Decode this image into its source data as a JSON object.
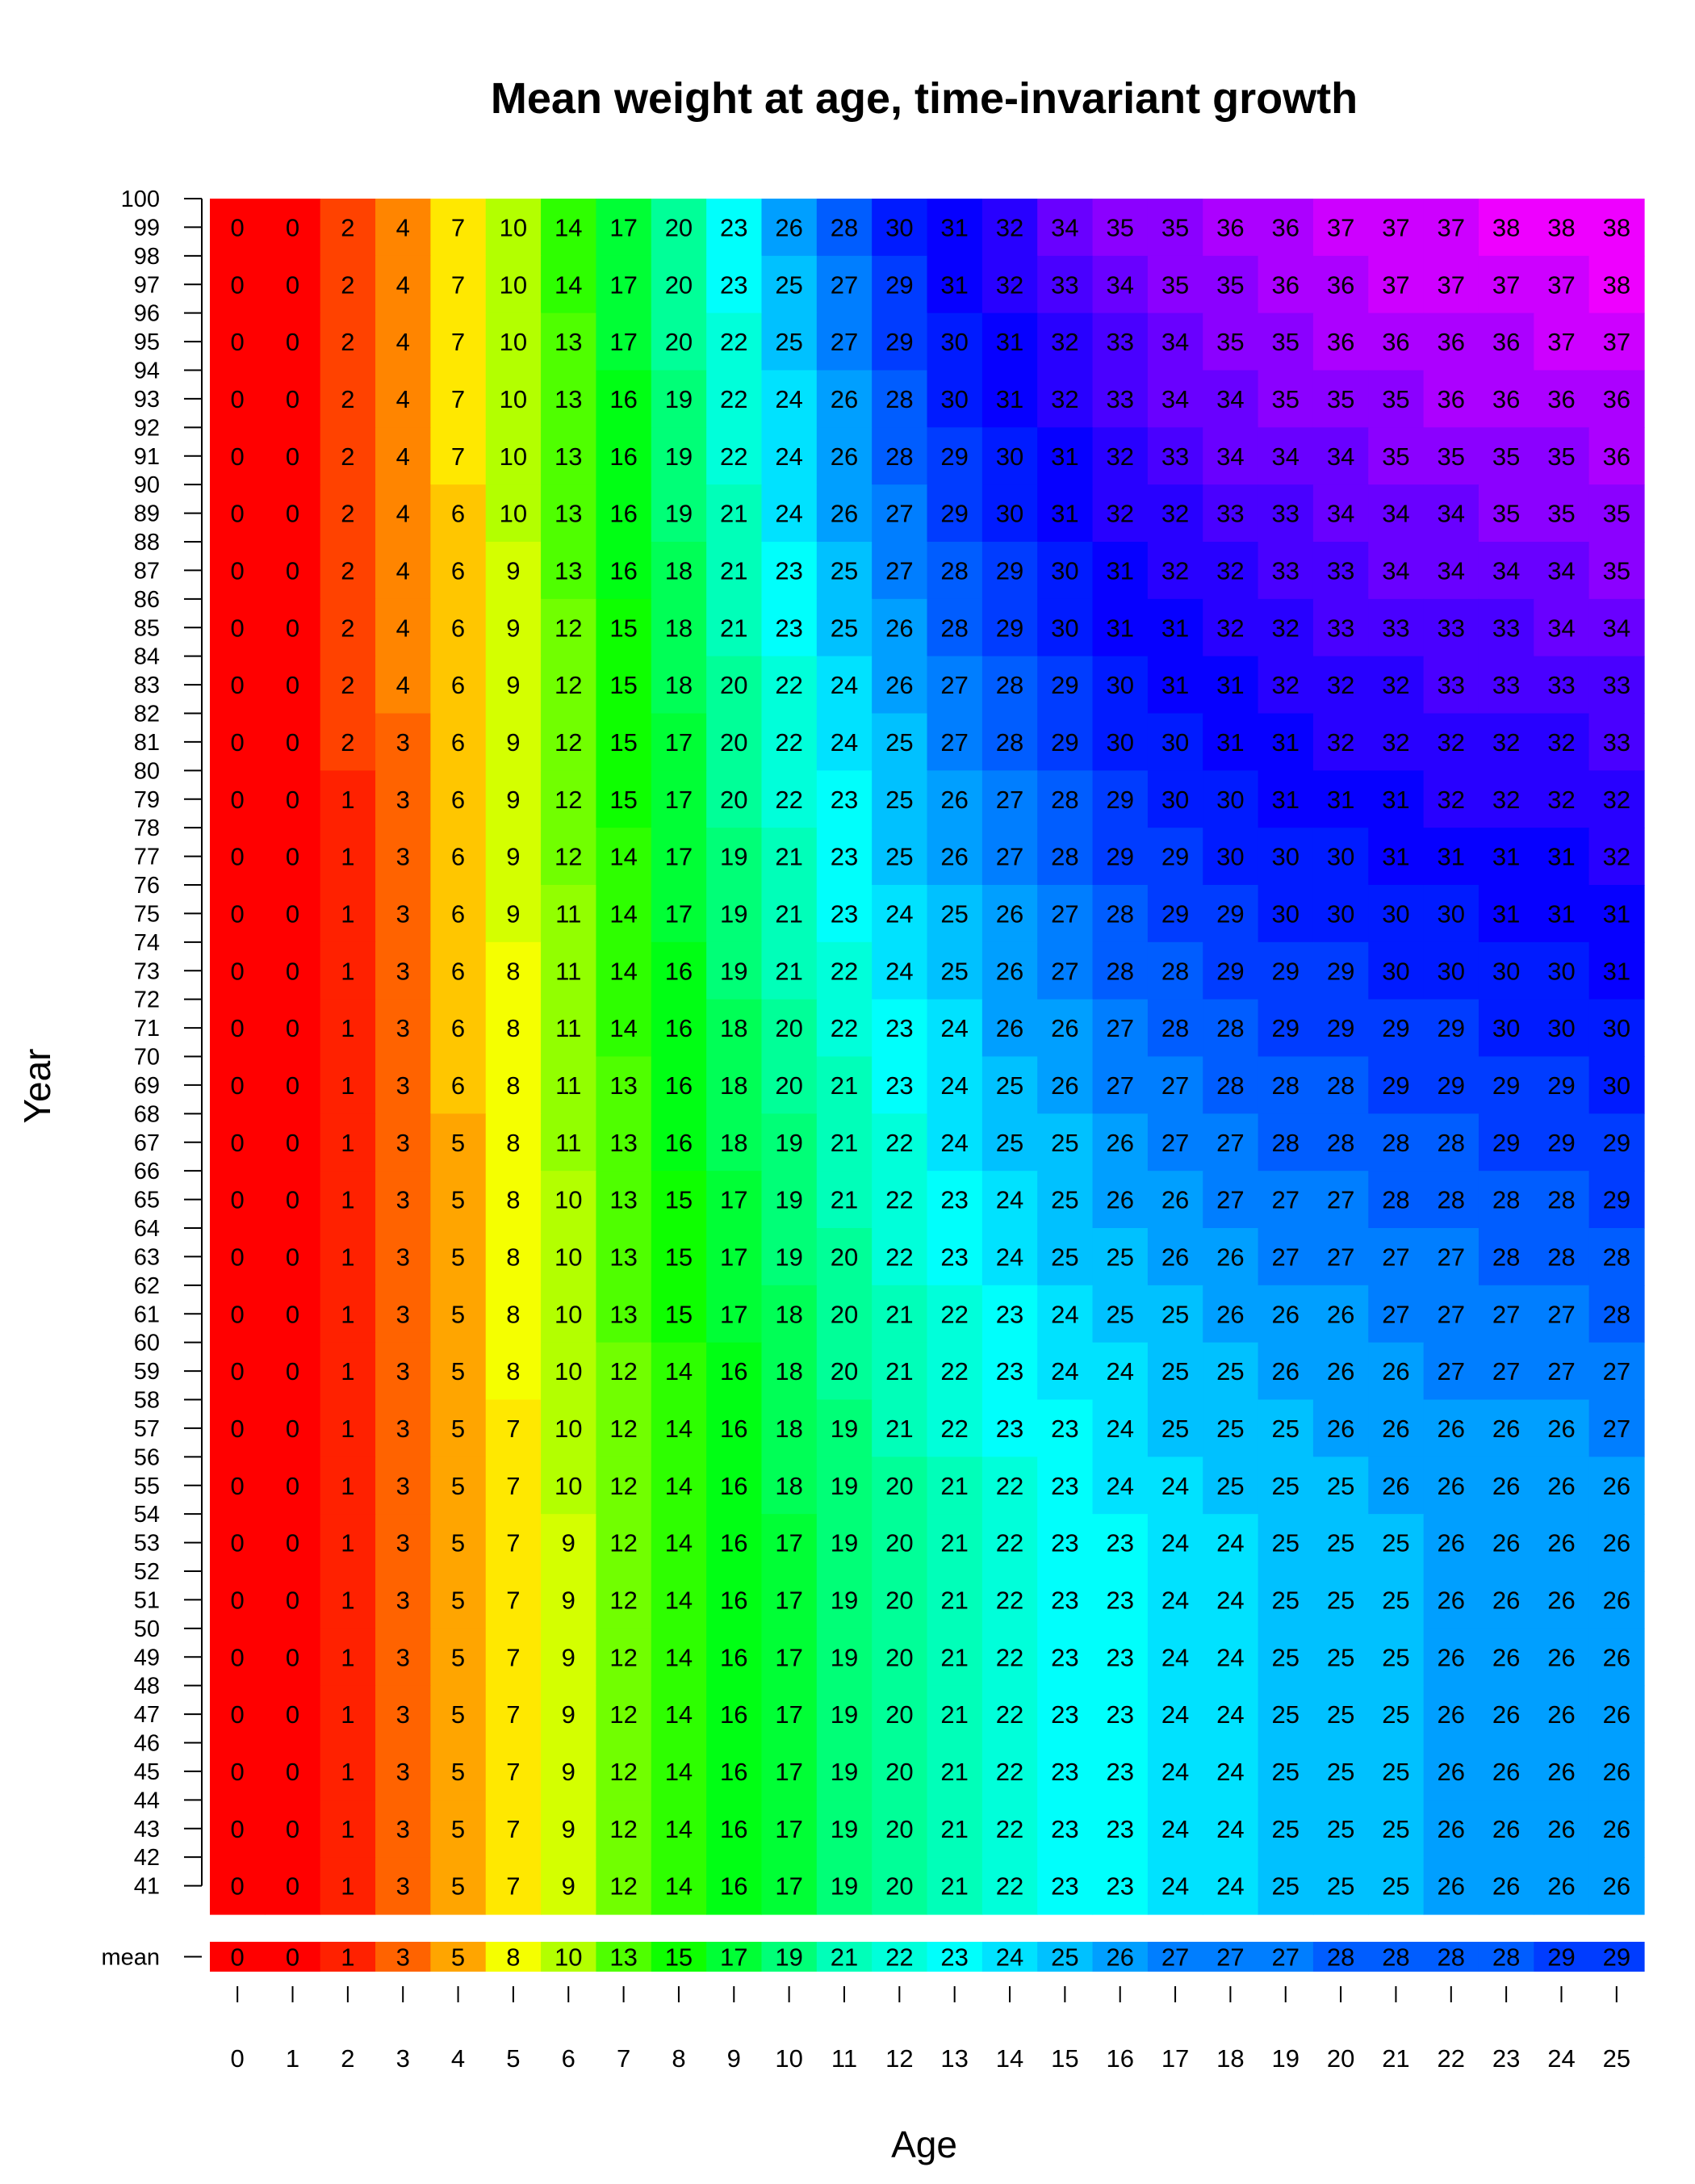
{
  "chart_data": {
    "type": "heatmap",
    "title": "Mean weight at age, time-invariant growth",
    "xlabel": "Age",
    "ylabel": "Year",
    "x_ticks": [
      "0",
      "1",
      "2",
      "3",
      "4",
      "5",
      "6",
      "7",
      "8",
      "9",
      "10",
      "11",
      "12",
      "13",
      "14",
      "15",
      "16",
      "17",
      "18",
      "19",
      "20",
      "21",
      "22",
      "23",
      "24",
      "25"
    ],
    "year_ticks": [
      "41",
      "42",
      "43",
      "44",
      "45",
      "46",
      "47",
      "48",
      "49",
      "50",
      "51",
      "52",
      "53",
      "54",
      "55",
      "56",
      "57",
      "58",
      "59",
      "60",
      "61",
      "62",
      "63",
      "64",
      "65",
      "66",
      "67",
      "68",
      "69",
      "70",
      "71",
      "72",
      "73",
      "74",
      "75",
      "76",
      "77",
      "78",
      "79",
      "80",
      "81",
      "82",
      "83",
      "84",
      "85",
      "86",
      "87",
      "88",
      "89",
      "90",
      "91",
      "92",
      "93",
      "94",
      "95",
      "96",
      "97",
      "98",
      "99",
      "100"
    ],
    "mean_row_label": "mean",
    "color_scale": "rainbow red-yellow-green-cyan-blue-magenta by value (0 to 38)",
    "rows": [
      {
        "year": "99",
        "values": [
          0,
          0,
          2,
          4,
          7,
          10,
          14,
          17,
          20,
          23,
          26,
          28,
          30,
          31,
          32,
          34,
          35,
          35,
          36,
          36,
          37,
          37,
          37,
          38,
          38,
          38
        ]
      },
      {
        "year": "97",
        "values": [
          0,
          0,
          2,
          4,
          7,
          10,
          14,
          17,
          20,
          23,
          25,
          27,
          29,
          31,
          32,
          33,
          34,
          35,
          35,
          36,
          36,
          37,
          37,
          37,
          37,
          38
        ]
      },
      {
        "year": "95",
        "values": [
          0,
          0,
          2,
          4,
          7,
          10,
          13,
          17,
          20,
          22,
          25,
          27,
          29,
          30,
          31,
          32,
          33,
          34,
          35,
          35,
          36,
          36,
          36,
          36,
          37,
          37
        ]
      },
      {
        "year": "93",
        "values": [
          0,
          0,
          2,
          4,
          7,
          10,
          13,
          16,
          19,
          22,
          24,
          26,
          28,
          30,
          31,
          32,
          33,
          34,
          34,
          35,
          35,
          35,
          36,
          36,
          36,
          36
        ]
      },
      {
        "year": "91",
        "values": [
          0,
          0,
          2,
          4,
          7,
          10,
          13,
          16,
          19,
          22,
          24,
          26,
          28,
          29,
          30,
          31,
          32,
          33,
          34,
          34,
          34,
          35,
          35,
          35,
          35,
          36
        ]
      },
      {
        "year": "89",
        "values": [
          0,
          0,
          2,
          4,
          6,
          10,
          13,
          16,
          19,
          21,
          24,
          26,
          27,
          29,
          30,
          31,
          32,
          32,
          33,
          33,
          34,
          34,
          34,
          35,
          35,
          35
        ]
      },
      {
        "year": "87",
        "values": [
          0,
          0,
          2,
          4,
          6,
          9,
          13,
          16,
          18,
          21,
          23,
          25,
          27,
          28,
          29,
          30,
          31,
          32,
          32,
          33,
          33,
          34,
          34,
          34,
          34,
          35
        ]
      },
      {
        "year": "85",
        "values": [
          0,
          0,
          2,
          4,
          6,
          9,
          12,
          15,
          18,
          21,
          23,
          25,
          26,
          28,
          29,
          30,
          31,
          31,
          32,
          32,
          33,
          33,
          33,
          33,
          34,
          34
        ]
      },
      {
        "year": "83",
        "values": [
          0,
          0,
          2,
          4,
          6,
          9,
          12,
          15,
          18,
          20,
          22,
          24,
          26,
          27,
          28,
          29,
          30,
          31,
          31,
          32,
          32,
          32,
          33,
          33,
          33,
          33
        ]
      },
      {
        "year": "81",
        "values": [
          0,
          0,
          2,
          3,
          6,
          9,
          12,
          15,
          17,
          20,
          22,
          24,
          25,
          27,
          28,
          29,
          30,
          30,
          31,
          31,
          32,
          32,
          32,
          32,
          32,
          33
        ]
      },
      {
        "year": "79",
        "values": [
          0,
          0,
          1,
          3,
          6,
          9,
          12,
          15,
          17,
          20,
          22,
          23,
          25,
          26,
          27,
          28,
          29,
          30,
          30,
          31,
          31,
          31,
          32,
          32,
          32,
          32
        ]
      },
      {
        "year": "77",
        "values": [
          0,
          0,
          1,
          3,
          6,
          9,
          12,
          14,
          17,
          19,
          21,
          23,
          25,
          26,
          27,
          28,
          29,
          29,
          30,
          30,
          30,
          31,
          31,
          31,
          31,
          32
        ]
      },
      {
        "year": "75",
        "values": [
          0,
          0,
          1,
          3,
          6,
          9,
          11,
          14,
          17,
          19,
          21,
          23,
          24,
          25,
          26,
          27,
          28,
          29,
          29,
          30,
          30,
          30,
          30,
          31,
          31,
          31
        ]
      },
      {
        "year": "73",
        "values": [
          0,
          0,
          1,
          3,
          6,
          8,
          11,
          14,
          16,
          19,
          21,
          22,
          24,
          25,
          26,
          27,
          28,
          28,
          29,
          29,
          29,
          30,
          30,
          30,
          30,
          31
        ]
      },
      {
        "year": "71",
        "values": [
          0,
          0,
          1,
          3,
          6,
          8,
          11,
          14,
          16,
          18,
          20,
          22,
          23,
          24,
          26,
          26,
          27,
          28,
          28,
          29,
          29,
          29,
          29,
          30,
          30,
          30
        ]
      },
      {
        "year": "69",
        "values": [
          0,
          0,
          1,
          3,
          6,
          8,
          11,
          13,
          16,
          18,
          20,
          21,
          23,
          24,
          25,
          26,
          27,
          27,
          28,
          28,
          28,
          29,
          29,
          29,
          29,
          30
        ]
      },
      {
        "year": "67",
        "values": [
          0,
          0,
          1,
          3,
          5,
          8,
          11,
          13,
          16,
          18,
          19,
          21,
          22,
          24,
          25,
          25,
          26,
          27,
          27,
          28,
          28,
          28,
          28,
          29,
          29,
          29
        ]
      },
      {
        "year": "65",
        "values": [
          0,
          0,
          1,
          3,
          5,
          8,
          10,
          13,
          15,
          17,
          19,
          21,
          22,
          23,
          24,
          25,
          26,
          26,
          27,
          27,
          27,
          28,
          28,
          28,
          28,
          29
        ]
      },
      {
        "year": "63",
        "values": [
          0,
          0,
          1,
          3,
          5,
          8,
          10,
          13,
          15,
          17,
          19,
          20,
          22,
          23,
          24,
          25,
          25,
          26,
          26,
          27,
          27,
          27,
          27,
          28,
          28,
          28
        ]
      },
      {
        "year": "61",
        "values": [
          0,
          0,
          1,
          3,
          5,
          8,
          10,
          13,
          15,
          17,
          18,
          20,
          21,
          22,
          23,
          24,
          25,
          25,
          26,
          26,
          26,
          27,
          27,
          27,
          27,
          28
        ]
      },
      {
        "year": "59",
        "values": [
          0,
          0,
          1,
          3,
          5,
          8,
          10,
          12,
          14,
          16,
          18,
          20,
          21,
          22,
          23,
          24,
          24,
          25,
          25,
          26,
          26,
          26,
          27,
          27,
          27,
          27
        ]
      },
      {
        "year": "57",
        "values": [
          0,
          0,
          1,
          3,
          5,
          7,
          10,
          12,
          14,
          16,
          18,
          19,
          21,
          22,
          23,
          23,
          24,
          25,
          25,
          25,
          26,
          26,
          26,
          26,
          26,
          27
        ]
      },
      {
        "year": "55",
        "values": [
          0,
          0,
          1,
          3,
          5,
          7,
          10,
          12,
          14,
          16,
          18,
          19,
          20,
          21,
          22,
          23,
          24,
          24,
          25,
          25,
          25,
          26,
          26,
          26,
          26,
          26
        ]
      },
      {
        "year": "53",
        "values": [
          0,
          0,
          1,
          3,
          5,
          7,
          9,
          12,
          14,
          16,
          17,
          19,
          20,
          21,
          22,
          23,
          23,
          24,
          24,
          25,
          25,
          25,
          26,
          26,
          26,
          26
        ]
      },
      {
        "year": "51",
        "values": [
          0,
          0,
          1,
          3,
          5,
          7,
          9,
          12,
          14,
          16,
          17,
          19,
          20,
          21,
          22,
          23,
          23,
          24,
          24,
          25,
          25,
          25,
          26,
          26,
          26,
          26
        ]
      },
      {
        "year": "49",
        "values": [
          0,
          0,
          1,
          3,
          5,
          7,
          9,
          12,
          14,
          16,
          17,
          19,
          20,
          21,
          22,
          23,
          23,
          24,
          24,
          25,
          25,
          25,
          26,
          26,
          26,
          26
        ]
      },
      {
        "year": "47",
        "values": [
          0,
          0,
          1,
          3,
          5,
          7,
          9,
          12,
          14,
          16,
          17,
          19,
          20,
          21,
          22,
          23,
          23,
          24,
          24,
          25,
          25,
          25,
          26,
          26,
          26,
          26
        ]
      },
      {
        "year": "45",
        "values": [
          0,
          0,
          1,
          3,
          5,
          7,
          9,
          12,
          14,
          16,
          17,
          19,
          20,
          21,
          22,
          23,
          23,
          24,
          24,
          25,
          25,
          25,
          26,
          26,
          26,
          26
        ]
      },
      {
        "year": "43",
        "values": [
          0,
          0,
          1,
          3,
          5,
          7,
          9,
          12,
          14,
          16,
          17,
          19,
          20,
          21,
          22,
          23,
          23,
          24,
          24,
          25,
          25,
          25,
          26,
          26,
          26,
          26
        ]
      },
      {
        "year": "41",
        "values": [
          0,
          0,
          1,
          3,
          5,
          7,
          9,
          12,
          14,
          16,
          17,
          19,
          20,
          21,
          22,
          23,
          23,
          24,
          24,
          25,
          25,
          25,
          26,
          26,
          26,
          26
        ]
      }
    ],
    "mean_values": [
      0,
      0,
      1,
      3,
      5,
      8,
      10,
      13,
      15,
      17,
      19,
      21,
      22,
      23,
      24,
      25,
      26,
      27,
      27,
      27,
      28,
      28,
      28,
      28,
      29,
      29
    ]
  }
}
